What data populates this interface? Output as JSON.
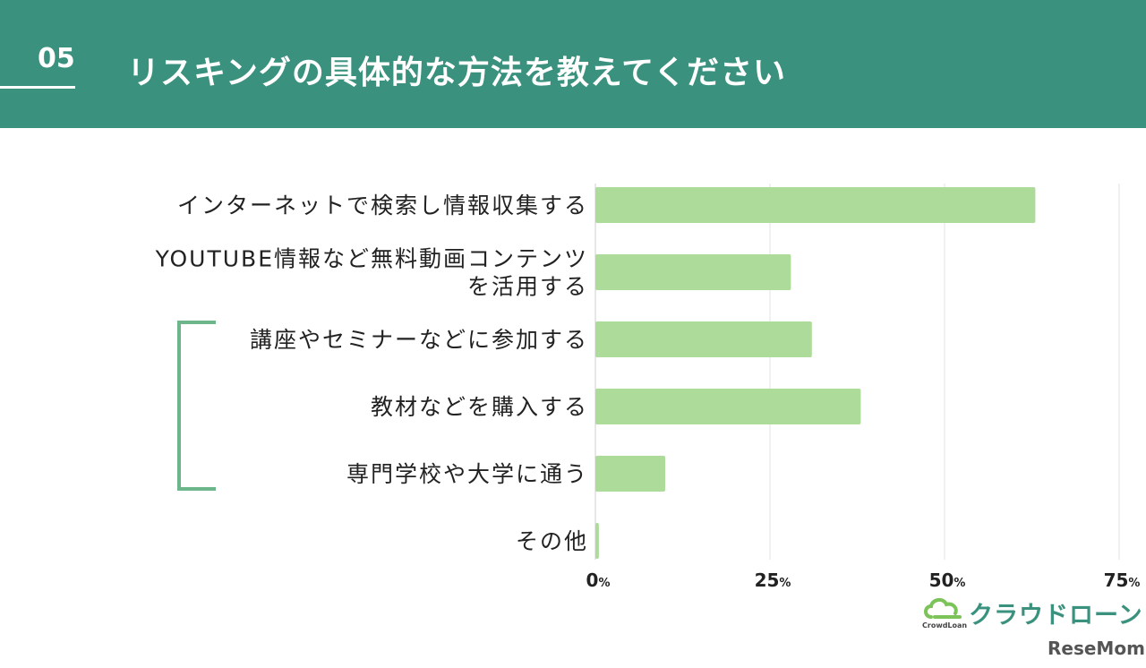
{
  "header": {
    "number": "05",
    "title": "リスキングの具体的な方法を教えてください"
  },
  "chart_data": {
    "type": "bar",
    "orientation": "horizontal",
    "categories": [
      [
        "インターネットで検索し情報収集する"
      ],
      [
        "YOUTUBE情報など無料動画コンテンツ",
        "を活用する"
      ],
      [
        "講座やセミナーなどに参加する"
      ],
      [
        "教材などを購入する"
      ],
      [
        "専門学校や大学に通う"
      ],
      [
        "その他"
      ]
    ],
    "values": [
      63,
      28,
      31,
      38,
      10,
      0.5
    ],
    "xlim": [
      0,
      75
    ],
    "xticks": [
      0,
      25,
      50,
      75
    ],
    "tick_labels": [
      {
        "num": "0",
        "unit": "%"
      },
      {
        "num": "25",
        "unit": "%"
      },
      {
        "num": "50",
        "unit": "%"
      },
      {
        "num": "75",
        "unit": "%"
      }
    ],
    "bar_color": "#addb9a",
    "bracket_color": "#6db58b",
    "grid": true
  },
  "logo": {
    "name": "クラウドローン",
    "sub": "CrowdLoan",
    "color": "#3a917e"
  },
  "watermark": "ReseMom"
}
